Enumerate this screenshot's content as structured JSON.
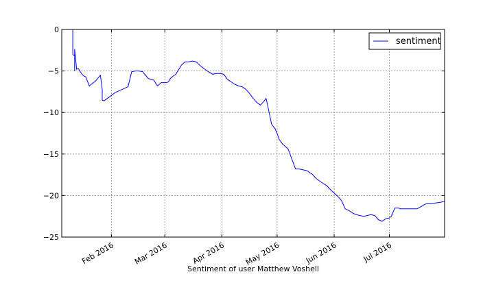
{
  "chart_data": {
    "type": "line",
    "title": "",
    "xlabel": "Sentiment of user Matthew Voshell",
    "ylabel": "",
    "xlim": [
      "2016-01-05",
      "2016-07-31"
    ],
    "ylim": [
      -25,
      0
    ],
    "grid": true,
    "legend_position": "top-right",
    "x_ticks": [
      "2016-02-01",
      "2016-03-01",
      "2016-04-01",
      "2016-05-01",
      "2016-06-01",
      "2016-07-01"
    ],
    "x_tick_labels": [
      "Feb 2016",
      "Mar 2016",
      "Apr 2016",
      "May 2016",
      "Jun 2016",
      "Jul 2016"
    ],
    "y_ticks": [
      0,
      -5,
      -10,
      -15,
      -20,
      -25
    ],
    "y_tick_labels": [
      "0",
      "−5",
      "−10",
      "−15",
      "−20",
      "−25"
    ],
    "series": [
      {
        "name": "sentiment",
        "color": "#0000ff",
        "x": [
          "2016-01-11",
          "2016-01-11",
          "2016-01-12",
          "2016-01-12",
          "2016-01-12",
          "2016-01-13",
          "2016-01-13",
          "2016-01-14",
          "2016-01-16",
          "2016-01-17",
          "2016-01-18",
          "2016-01-20",
          "2016-01-21",
          "2016-01-22",
          "2016-01-22",
          "2016-01-23",
          "2016-01-26",
          "2016-01-27",
          "2016-01-27",
          "2016-01-28",
          "2016-01-31",
          "2016-02-03",
          "2016-02-05",
          "2016-02-07",
          "2016-02-10",
          "2016-02-12",
          "2016-02-14",
          "2016-02-15",
          "2016-02-16",
          "2016-02-18",
          "2016-02-21",
          "2016-02-24",
          "2016-02-26",
          "2016-02-28",
          "2016-03-01",
          "2016-03-02",
          "2016-03-03",
          "2016-03-04",
          "2016-03-05",
          "2016-03-07",
          "2016-03-10",
          "2016-03-12",
          "2016-03-12",
          "2016-03-14",
          "2016-03-16",
          "2016-03-18",
          "2016-03-20",
          "2016-03-21",
          "2016-03-24",
          "2016-03-27",
          "2016-03-29",
          "2016-03-31",
          "2016-04-02",
          "2016-04-04",
          "2016-04-06",
          "2016-04-08",
          "2016-04-10",
          "2016-04-12",
          "2016-04-14",
          "2016-04-16",
          "2016-04-18",
          "2016-04-20",
          "2016-04-22",
          "2016-04-24",
          "2016-04-25",
          "2016-04-26",
          "2016-04-28",
          "2016-04-29",
          "2016-04-30",
          "2016-05-01",
          "2016-05-02",
          "2016-05-04",
          "2016-05-07",
          "2016-05-09",
          "2016-05-11",
          "2016-05-13",
          "2016-05-15",
          "2016-05-17",
          "2016-05-18",
          "2016-05-19",
          "2016-05-20",
          "2016-05-22",
          "2016-05-25",
          "2016-05-28",
          "2016-05-30",
          "2016-06-01",
          "2016-06-03",
          "2016-06-05",
          "2016-06-07",
          "2016-06-09",
          "2016-06-11",
          "2016-06-13",
          "2016-06-15",
          "2016-06-17",
          "2016-06-19",
          "2016-06-21",
          "2016-06-23",
          "2016-06-25",
          "2016-06-27",
          "2016-06-29",
          "2016-07-01",
          "2016-07-02",
          "2016-07-04",
          "2016-07-06",
          "2016-07-07",
          "2016-07-10",
          "2016-07-13",
          "2016-07-16",
          "2016-07-20",
          "2016-07-21",
          "2016-07-23",
          "2016-07-26",
          "2016-07-29",
          "2016-07-31"
        ],
        "y": [
          0,
          -3,
          -3.2,
          -5,
          -2.4,
          -4.6,
          -4.8,
          -4.7,
          -5.4,
          -5.6,
          -5.7,
          -6.8,
          -6.6,
          -6.5,
          -6.4,
          -6.3,
          -5.5,
          -7.2,
          -8.5,
          -8.6,
          -8.1,
          -7.6,
          -7.4,
          -7.2,
          -6.9,
          -5.1,
          -5.0,
          -5.0,
          -5.0,
          -5.1,
          -5.9,
          -6.1,
          -6.8,
          -6.4,
          -6.4,
          -6.4,
          -6.3,
          -5.9,
          -5.7,
          -5.4,
          -4.3,
          -3.9,
          -3.9,
          -3.9,
          -3.8,
          -3.9,
          -4.3,
          -4.5,
          -5.0,
          -5.4,
          -5.3,
          -5.3,
          -5.4,
          -6.0,
          -6.3,
          -6.6,
          -6.8,
          -6.9,
          -7.2,
          -7.7,
          -8.3,
          -8.8,
          -9.1,
          -8.6,
          -8.3,
          -9.3,
          -11.4,
          -11.7,
          -12.0,
          -12.5,
          -13.2,
          -13.8,
          -14.4,
          -15.6,
          -16.8,
          -16.8,
          -16.9,
          -17.0,
          -17.1,
          -17.3,
          -17.4,
          -17.9,
          -18.4,
          -18.8,
          -19.3,
          -19.7,
          -20.1,
          -20.6,
          -21.6,
          -21.8,
          -22.1,
          -22.3,
          -22.4,
          -22.5,
          -22.4,
          -22.3,
          -22.4,
          -22.9,
          -23.1,
          -22.8,
          -22.7,
          -22.5,
          -21.5,
          -21.5,
          -21.6,
          -21.6,
          -21.6,
          -21.6,
          -21.1,
          -21.0,
          -21.0,
          -20.9,
          -20.8,
          -20.7
        ]
      }
    ]
  }
}
